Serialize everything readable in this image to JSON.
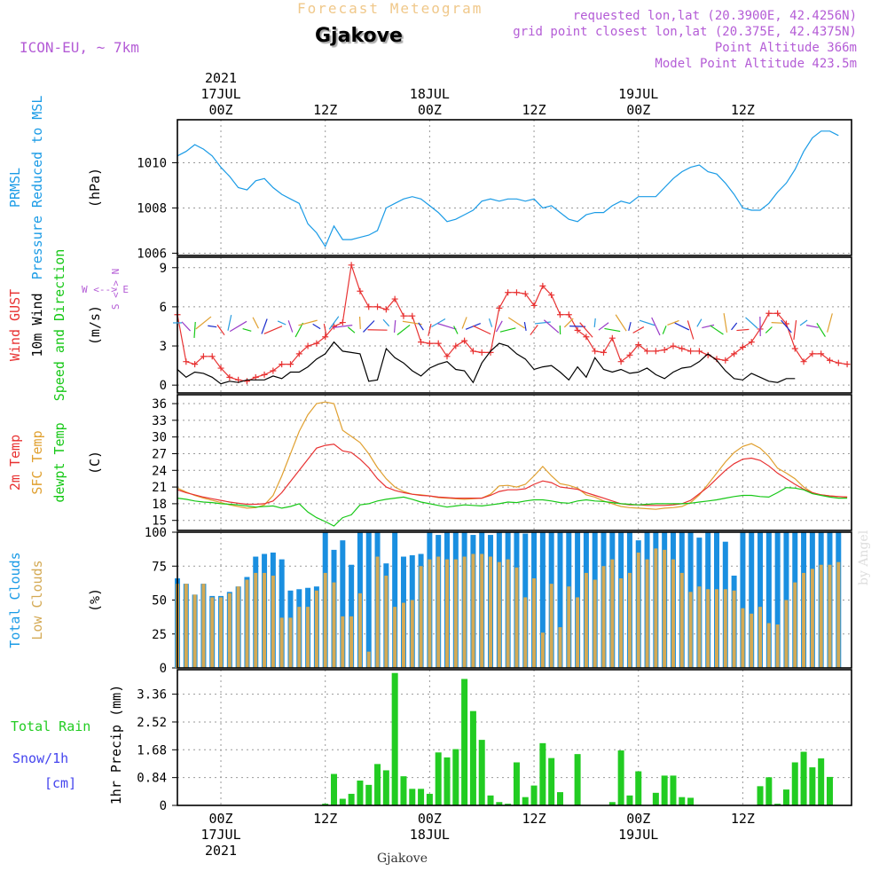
{
  "header": {
    "title": "Forecast Meteogram",
    "city": "Gjakove",
    "model": "ICON-EU, ~ 7km",
    "requested": "requested lon,lat (20.3900E, 42.4256N)",
    "grid": "grid point closest lon,lat (20.375E, 42.4375N)",
    "altitude": "Point Altitude 366m",
    "model_altitude": "Model Point Altitude 423.5m"
  },
  "credit": "by Angel",
  "footer": "Gjakove",
  "time_axis": {
    "top_ticks": [
      {
        "h": 0,
        "lines": [
          "2021",
          "17JUL",
          "00Z"
        ]
      },
      {
        "h": 12,
        "lines": [
          "12Z"
        ]
      },
      {
        "h": 24,
        "lines": [
          "18JUL",
          "00Z"
        ]
      },
      {
        "h": 36,
        "lines": [
          "12Z"
        ]
      },
      {
        "h": 48,
        "lines": [
          "19JUL",
          "00Z"
        ]
      },
      {
        "h": 60,
        "lines": [
          "12Z"
        ]
      }
    ],
    "bottom_ticks": [
      {
        "h": 0,
        "lines": [
          "00Z",
          "17JUL",
          "2021"
        ]
      },
      {
        "h": 12,
        "lines": [
          "12Z"
        ]
      },
      {
        "h": 24,
        "lines": [
          "00Z",
          "18JUL"
        ]
      },
      {
        "h": 36,
        "lines": [
          "12Z"
        ]
      },
      {
        "h": 48,
        "lines": [
          "00Z",
          "19JUL"
        ]
      },
      {
        "h": 60,
        "lines": [
          "12Z"
        ]
      }
    ]
  },
  "colors": {
    "pressure": "#1a9be6",
    "gust": "#e83232",
    "wind": "#000000",
    "temp": "#e83232",
    "sfc": "#e0a030",
    "dew": "#18c818",
    "total_clouds": "#1a8fe0",
    "low_clouds": "#d4aa55",
    "rain": "#22cc22",
    "snow": "#4444ee",
    "purple": "#b45cd6",
    "black": "#000000"
  },
  "chart_data": [
    {
      "type": "line",
      "name": "pressure",
      "ylabels": [
        {
          "text": "PRMSL",
          "color": "#1a9be6"
        },
        {
          "text": "Pressure Reduced to MSL",
          "color": "#1a9be6"
        },
        {
          "text": "(hPa)",
          "color": "#000000"
        }
      ],
      "yticks": [
        1006,
        1008,
        1010
      ],
      "ylim": [
        1005.9,
        1011.9
      ],
      "x_start": -5,
      "x_step": 1,
      "series": [
        {
          "name": "PRMSL",
          "color": "#1a9be6",
          "values": [
            1010.3,
            1010.5,
            1010.8,
            1010.6,
            1010.3,
            1009.8,
            1009.4,
            1008.9,
            1008.8,
            1009.2,
            1009.3,
            1008.9,
            1008.6,
            1008.4,
            1008.2,
            1007.3,
            1006.9,
            1006.3,
            1007.2,
            1006.6,
            1006.6,
            1006.7,
            1006.8,
            1007.0,
            1008.0,
            1008.2,
            1008.4,
            1008.5,
            1008.4,
            1008.1,
            1007.8,
            1007.4,
            1007.5,
            1007.7,
            1007.9,
            1008.3,
            1008.4,
            1008.3,
            1008.4,
            1008.4,
            1008.3,
            1008.4,
            1008.0,
            1008.1,
            1007.8,
            1007.5,
            1007.4,
            1007.7,
            1007.8,
            1007.8,
            1008.1,
            1008.3,
            1008.2,
            1008.5,
            1008.5,
            1008.5,
            1008.9,
            1009.3,
            1009.6,
            1009.8,
            1009.9,
            1009.6,
            1009.5,
            1009.1,
            1008.6,
            1008.0,
            1007.9,
            1007.9,
            1008.2,
            1008.7,
            1009.1,
            1009.7,
            1010.5,
            1011.1,
            1011.4,
            1011.4,
            1011.2
          ]
        }
      ]
    },
    {
      "type": "line",
      "name": "wind",
      "ylabels": [
        {
          "text": "Wind GUST",
          "color": "#e83232"
        },
        {
          "text": "10m Wind",
          "color": "#000000"
        },
        {
          "text": "Speed and Direction",
          "color": "#18c818"
        },
        {
          "text": "(m/s)",
          "color": "#000000"
        }
      ],
      "compass": "W <--> E / S <-> N",
      "yticks": [
        0,
        3,
        6,
        9
      ],
      "ylim": [
        -0.6,
        9.8
      ],
      "x_start": -5,
      "x_step": 1,
      "series": [
        {
          "name": "Wind GUST",
          "color": "#e83232",
          "marker": "+",
          "values": [
            5.4,
            1.8,
            1.6,
            2.2,
            2.2,
            1.3,
            0.6,
            0.4,
            0.3,
            0.6,
            0.8,
            1.1,
            1.6,
            1.6,
            2.4,
            3.0,
            3.2,
            3.7,
            4.5,
            4.8,
            9.2,
            7.2,
            6.0,
            6.0,
            5.8,
            6.6,
            5.3,
            5.3,
            3.3,
            3.2,
            3.2,
            2.2,
            3.0,
            3.4,
            2.6,
            2.5,
            2.5,
            5.9,
            7.1,
            7.1,
            7.0,
            6.1,
            7.6,
            6.9,
            5.4,
            5.4,
            4.2,
            3.7,
            2.6,
            2.5,
            3.6,
            1.8,
            2.3,
            3.1,
            2.6,
            2.6,
            2.7,
            3.0,
            2.8,
            2.6,
            2.6,
            2.3,
            2.0,
            1.9,
            2.4,
            2.9,
            3.3,
            4.3,
            5.5,
            5.5,
            4.7,
            2.8,
            1.8,
            2.4,
            2.4,
            1.9,
            1.7,
            1.6
          ]
        },
        {
          "name": "10m Wind",
          "color": "#000000",
          "values": [
            1.2,
            0.6,
            1.0,
            0.9,
            0.6,
            0.1,
            0.3,
            0.2,
            0.4,
            0.4,
            0.4,
            0.7,
            0.5,
            1.0,
            1.0,
            1.4,
            2.0,
            2.4,
            3.3,
            2.6,
            2.5,
            2.4,
            0.3,
            0.4,
            2.8,
            2.1,
            1.7,
            1.1,
            0.7,
            1.3,
            1.6,
            1.8,
            1.2,
            1.1,
            0.2,
            1.7,
            2.6,
            3.2,
            3.0,
            2.4,
            2.0,
            1.2,
            1.4,
            1.5,
            1.0,
            0.4,
            1.4,
            0.6,
            2.1,
            1.2,
            1.0,
            1.2,
            0.9,
            1.0,
            1.3,
            0.8,
            0.5,
            1.0,
            1.3,
            1.4,
            1.8,
            2.4,
            1.9,
            1.1,
            0.5,
            0.4,
            0.9,
            0.6,
            0.3,
            0.2,
            0.5,
            0.5
          ]
        }
      ]
    },
    {
      "type": "line",
      "name": "temperature",
      "ylabels": [
        {
          "text": "2m Temp",
          "color": "#e83232"
        },
        {
          "text": "SFC Temp",
          "color": "#e0a030"
        },
        {
          "text": "dewpt Temp",
          "color": "#18c818"
        },
        {
          "text": "(C)",
          "color": "#000000"
        }
      ],
      "yticks": [
        15,
        18,
        21,
        24,
        27,
        30,
        33,
        36
      ],
      "ylim": [
        13.2,
        37.6
      ],
      "x_start": -5,
      "x_step": 1,
      "series": [
        {
          "name": "SFC Temp",
          "color": "#e0a030",
          "values": [
            20.8,
            20.1,
            19.5,
            19.0,
            18.6,
            18.2,
            17.8,
            17.5,
            17.2,
            17.3,
            17.8,
            19.5,
            23.0,
            27.0,
            31.0,
            34.0,
            36.0,
            36.3,
            36.0,
            31.2,
            30.1,
            29.0,
            27.0,
            24.5,
            22.5,
            21.0,
            20.2,
            19.7,
            19.6,
            19.4,
            19.1,
            19.0,
            18.9,
            18.8,
            18.9,
            19.0,
            19.7,
            21.2,
            21.3,
            21.0,
            21.5,
            23.0,
            24.7,
            23.0,
            21.6,
            21.3,
            20.8,
            19.6,
            19.2,
            18.5,
            18.0,
            17.5,
            17.3,
            17.2,
            17.1,
            17.0,
            17.2,
            17.3,
            17.5,
            18.2,
            19.6,
            21.5,
            23.5,
            25.5,
            27.2,
            28.3,
            28.8,
            28.0,
            26.5,
            24.4,
            23.5,
            22.5,
            21.0,
            20.0,
            19.6,
            19.4,
            19.3,
            19.2
          ]
        },
        {
          "name": "2m Temp",
          "color": "#e83232",
          "values": [
            20.5,
            20.0,
            19.6,
            19.2,
            18.9,
            18.6,
            18.3,
            18.1,
            17.9,
            17.9,
            18.0,
            18.5,
            20.0,
            22.0,
            24.0,
            26.0,
            28.0,
            28.5,
            28.7,
            27.5,
            27.2,
            26.0,
            24.5,
            22.5,
            21.0,
            20.4,
            20.0,
            19.7,
            19.5,
            19.4,
            19.2,
            19.1,
            19.0,
            19.0,
            19.0,
            19.0,
            19.5,
            20.2,
            20.5,
            20.5,
            20.7,
            21.5,
            22.1,
            21.8,
            21.0,
            20.8,
            20.6,
            20.0,
            19.5,
            19.0,
            18.5,
            18.0,
            17.8,
            17.8,
            17.7,
            17.7,
            17.7,
            17.8,
            18.0,
            18.6,
            19.8,
            21.0,
            22.5,
            24.0,
            25.2,
            26.0,
            26.2,
            25.8,
            24.8,
            23.5,
            22.5,
            21.5,
            20.6,
            20.0,
            19.6,
            19.4,
            19.3,
            19.2
          ]
        },
        {
          "name": "dewpt Temp",
          "color": "#18c818",
          "values": [
            19.0,
            18.8,
            18.5,
            18.3,
            18.2,
            18.0,
            17.9,
            17.8,
            17.6,
            17.4,
            17.5,
            17.6,
            17.2,
            17.5,
            18.0,
            16.5,
            15.5,
            14.8,
            14.0,
            15.5,
            16.0,
            17.8,
            18.0,
            18.5,
            18.8,
            19.0,
            19.2,
            18.8,
            18.3,
            18.0,
            17.7,
            17.4,
            17.6,
            17.8,
            17.7,
            17.6,
            17.8,
            18.0,
            18.3,
            18.2,
            18.5,
            18.7,
            18.7,
            18.5,
            18.2,
            18.1,
            18.5,
            18.7,
            18.5,
            18.4,
            18.2,
            18.0,
            17.9,
            17.8,
            17.9,
            18.0,
            18.0,
            18.0,
            18.0,
            18.1,
            18.3,
            18.5,
            18.7,
            19.0,
            19.3,
            19.5,
            19.5,
            19.3,
            19.2,
            20.0,
            20.9,
            20.8,
            20.5,
            19.8,
            19.5,
            19.2,
            19.0,
            19.0
          ]
        }
      ]
    },
    {
      "type": "bar",
      "name": "clouds",
      "ylabels": [
        {
          "text": "Total Clouds",
          "color": "#1a9be6"
        },
        {
          "text": "Low Clouds",
          "color": "#d4aa55"
        },
        {
          "text": "(%)",
          "color": "#000000"
        }
      ],
      "yticks": [
        0,
        25,
        50,
        75,
        100
      ],
      "ylim": [
        0,
        100
      ],
      "x_start": -5,
      "x_step": 1,
      "series": [
        {
          "name": "Total Clouds",
          "color": "#1a8fe0",
          "values": [
            66,
            62,
            54,
            62,
            53,
            53,
            56,
            60,
            67,
            82,
            84,
            85,
            80,
            57,
            58,
            59,
            60,
            100,
            87,
            94,
            76,
            100,
            100,
            100,
            77,
            100,
            82,
            83,
            84,
            100,
            98,
            100,
            100,
            100,
            98,
            100,
            98,
            100,
            100,
            100,
            99,
            100,
            100,
            100,
            100,
            100,
            100,
            100,
            100,
            100,
            100,
            100,
            100,
            94,
            100,
            100,
            100,
            100,
            100,
            100,
            96,
            100,
            100,
            93,
            68,
            100,
            100,
            100,
            100,
            100,
            100,
            100,
            100,
            100,
            100,
            100,
            100
          ]
        },
        {
          "name": "Low Clouds",
          "color": "#d4aa55",
          "values": [
            62,
            62,
            54,
            62,
            52,
            52,
            55,
            60,
            65,
            70,
            70,
            68,
            37,
            37,
            45,
            45,
            57,
            70,
            63,
            38,
            38,
            55,
            12,
            82,
            68,
            45,
            48,
            50,
            75,
            80,
            82,
            80,
            80,
            82,
            84,
            84,
            82,
            78,
            80,
            74,
            52,
            66,
            26,
            62,
            30,
            60,
            52,
            70,
            65,
            75,
            80,
            66,
            70,
            85,
            80,
            88,
            87,
            80,
            70,
            56,
            60,
            58,
            58,
            58,
            57,
            44,
            40,
            45,
            33,
            32,
            50,
            63,
            70,
            73,
            76,
            76,
            78
          ]
        }
      ]
    },
    {
      "type": "bar",
      "name": "precipitation",
      "ylabels": [
        {
          "text": "Total  Rain",
          "color": "#22cc22"
        },
        {
          "text": "Snow/1h",
          "color": "#4444ee"
        },
        {
          "text": "[cm]",
          "color": "#4444ee"
        },
        {
          "text": "1hr Precip (mm)",
          "color": "#000000"
        }
      ],
      "yticks": [
        0,
        0.84,
        1.68,
        2.52,
        3.36
      ],
      "ylim": [
        0,
        4.1
      ],
      "x_start": -5,
      "x_step": 1,
      "series": [
        {
          "name": "Total Rain",
          "color": "#22cc22",
          "values": [
            0,
            0,
            0,
            0,
            0,
            0,
            0,
            0,
            0,
            0,
            0,
            0,
            0,
            0,
            0,
            0,
            0,
            0.05,
            0.95,
            0.2,
            0.35,
            0.75,
            0.62,
            1.25,
            1.06,
            4.0,
            0.88,
            0.5,
            0.5,
            0.35,
            1.6,
            1.45,
            1.7,
            3.82,
            2.85,
            1.98,
            0.3,
            0.1,
            0.05,
            1.3,
            0.25,
            0.6,
            1.88,
            1.43,
            0.4,
            0,
            1.55,
            0,
            0,
            0,
            0.1,
            1.66,
            0.3,
            1.03,
            0,
            0.38,
            0.9,
            0.9,
            0.25,
            0.23,
            0,
            0,
            0,
            0,
            0,
            0,
            0,
            0.58,
            0.85,
            0.05,
            0.48,
            1.3,
            1.62,
            1.15,
            1.42,
            0.86
          ]
        }
      ]
    }
  ]
}
